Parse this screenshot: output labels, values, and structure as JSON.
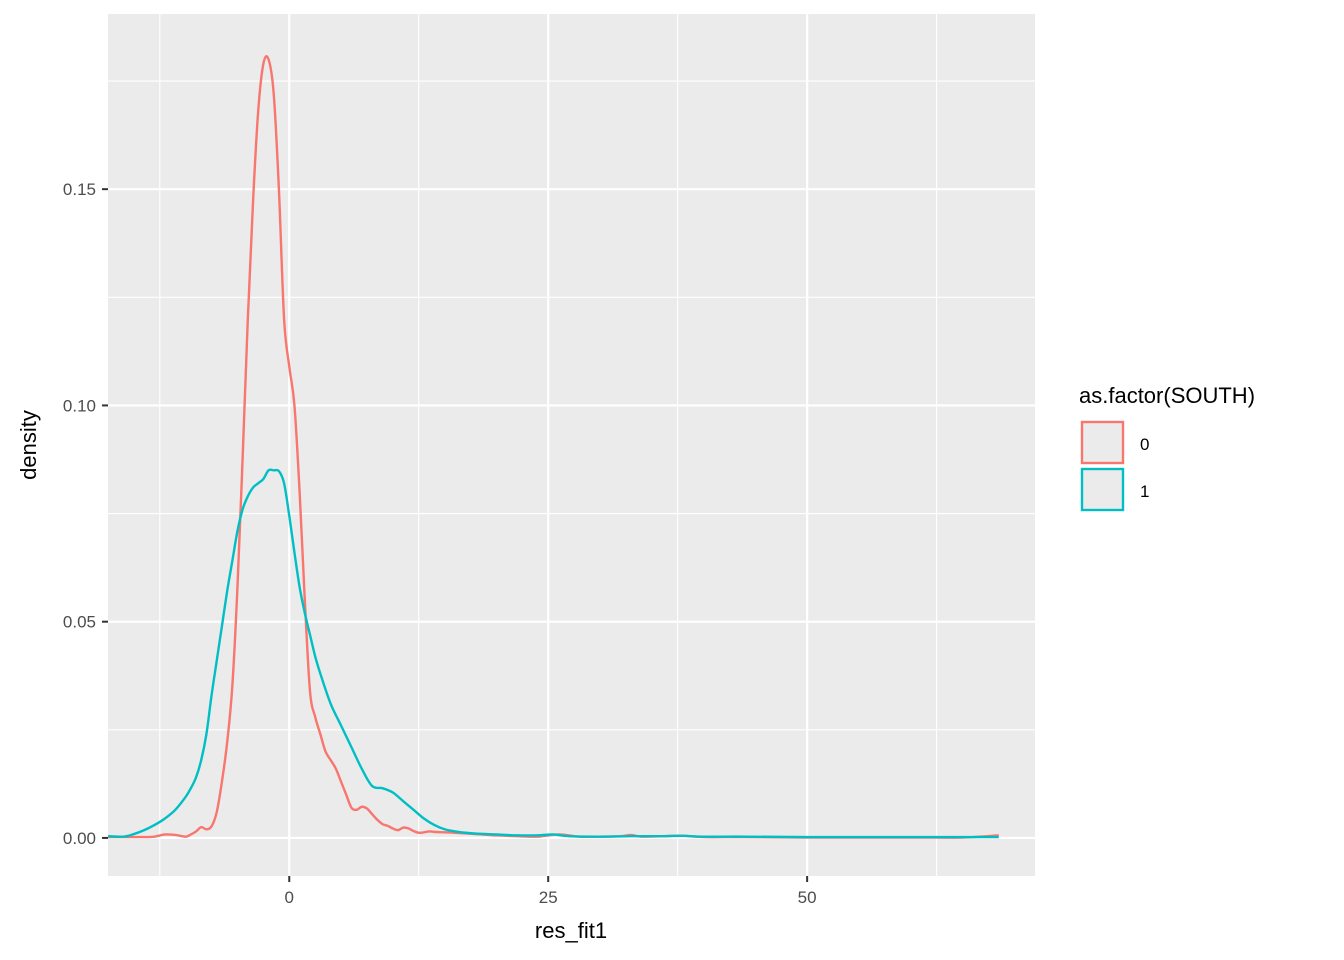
{
  "chart_data": {
    "type": "line",
    "xlabel": "res_fit1",
    "ylabel": "density",
    "xlim": [
      -17.5,
      72
    ],
    "ylim": [
      -0.0088,
      0.1905
    ],
    "x_ticks": [
      0,
      25,
      50
    ],
    "x_tick_labels": [
      "0",
      "25",
      "50"
    ],
    "x_minor_ticks": [
      -12.5,
      12.5,
      37.5,
      62.5
    ],
    "y_ticks": [
      0,
      0.05,
      0.1,
      0.15
    ],
    "y_tick_labels": [
      "0.00",
      "0.05",
      "0.10",
      "0.15"
    ],
    "y_minor_ticks": [
      0.025,
      0.075,
      0.125,
      0.175
    ],
    "grid": true,
    "legend": {
      "title": "as.factor(SOUTH)",
      "position": "right"
    },
    "series": [
      {
        "name": "0",
        "color": "#F8766D",
        "x": [
          -17.5,
          -14,
          -13,
          -12,
          -11,
          -10,
          -9.5,
          -9,
          -8.5,
          -8,
          -7.5,
          -7,
          -6.5,
          -6,
          -5.5,
          -5,
          -4.5,
          -4,
          -3.5,
          -3,
          -2.5,
          -2,
          -1.5,
          -1,
          -0.5,
          0,
          0.5,
          1,
          1.5,
          2,
          2.5,
          3,
          3.5,
          4,
          4.5,
          5,
          5.5,
          6,
          6.5,
          7,
          7.5,
          8,
          8.5,
          9,
          9.5,
          10,
          10.5,
          11,
          11.5,
          12,
          12.5,
          13,
          13.5,
          14,
          15,
          16,
          18,
          20,
          22,
          24,
          26,
          28,
          30,
          32,
          33,
          34,
          36,
          38,
          40,
          44,
          50,
          60,
          65,
          68.5
        ],
        "y": [
          0.0002,
          0.0002,
          0.0003,
          0.0008,
          0.0007,
          0.0003,
          0.0008,
          0.0015,
          0.0025,
          0.002,
          0.0027,
          0.006,
          0.013,
          0.022,
          0.035,
          0.058,
          0.088,
          0.12,
          0.147,
          0.168,
          0.179,
          0.18,
          0.172,
          0.15,
          0.12,
          0.109,
          0.1,
          0.08,
          0.055,
          0.034,
          0.028,
          0.024,
          0.02,
          0.018,
          0.016,
          0.013,
          0.01,
          0.007,
          0.0065,
          0.0072,
          0.0068,
          0.0055,
          0.0042,
          0.0032,
          0.0028,
          0.0022,
          0.0018,
          0.0024,
          0.0022,
          0.0016,
          0.0012,
          0.0013,
          0.0015,
          0.0014,
          0.0013,
          0.0012,
          0.0009,
          0.0006,
          0.0004,
          0.0003,
          0.0008,
          0.0003,
          0.0003,
          0.0004,
          0.0007,
          0.0003,
          0.0004,
          0.0005,
          0.0002,
          0.0002,
          0.0001,
          0.0001,
          0.0001,
          0.0006
        ]
      },
      {
        "name": "1",
        "color": "#00BFC4",
        "x": [
          -17.5,
          -16,
          -15,
          -14,
          -13,
          -12,
          -11,
          -10,
          -9.5,
          -9,
          -8.5,
          -8,
          -7.5,
          -7,
          -6.5,
          -6,
          -5.5,
          -5,
          -4.5,
          -4,
          -3.5,
          -3,
          -2.5,
          -2,
          -1.5,
          -1,
          -0.5,
          0,
          0.5,
          1,
          1.5,
          2,
          2.5,
          3,
          4,
          5,
          6,
          7,
          8,
          9,
          10,
          11,
          12,
          13,
          14,
          15,
          16,
          17,
          18,
          20,
          22,
          24,
          25.5,
          27,
          30,
          33,
          36,
          38,
          40,
          44,
          50,
          60,
          68.5
        ],
        "y": [
          0.0004,
          0.0003,
          0.0009,
          0.0018,
          0.003,
          0.0045,
          0.0065,
          0.0095,
          0.0115,
          0.014,
          0.018,
          0.024,
          0.033,
          0.041,
          0.049,
          0.057,
          0.064,
          0.071,
          0.076,
          0.079,
          0.081,
          0.082,
          0.083,
          0.085,
          0.085,
          0.0848,
          0.082,
          0.0745,
          0.066,
          0.058,
          0.052,
          0.047,
          0.042,
          0.038,
          0.031,
          0.026,
          0.021,
          0.016,
          0.012,
          0.0115,
          0.0105,
          0.0085,
          0.0065,
          0.0045,
          0.003,
          0.002,
          0.0015,
          0.0012,
          0.001,
          0.0008,
          0.0006,
          0.0006,
          0.0008,
          0.0004,
          0.0003,
          0.0004,
          0.0004,
          0.0005,
          0.0003,
          0.0003,
          0.0002,
          0.0002,
          0.0002
        ]
      }
    ]
  }
}
